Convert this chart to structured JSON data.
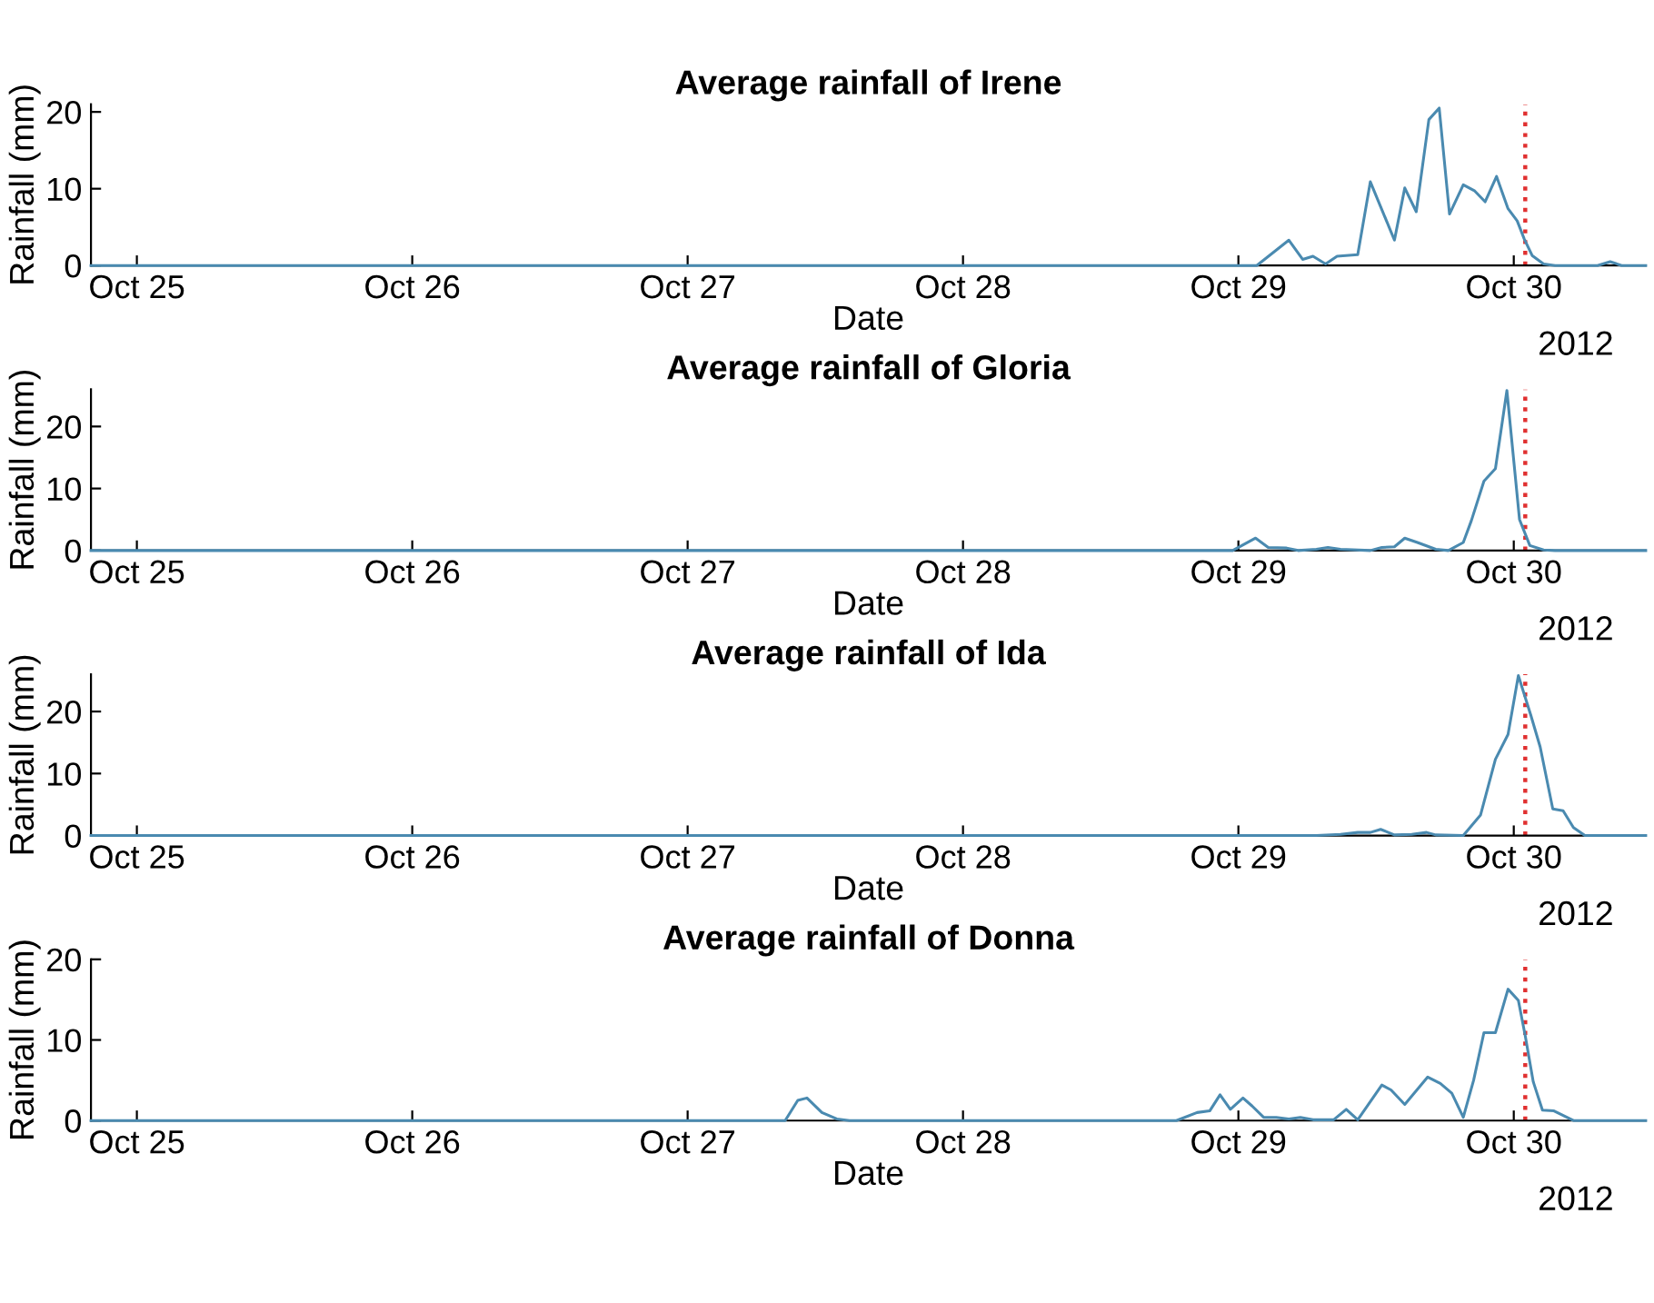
{
  "chart_data": [
    {
      "type": "line",
      "title": "Average rainfall of Irene",
      "xlabel": "Date",
      "ylabel": "Rainfall (mm)",
      "annotations": [
        "2012"
      ],
      "x": [
        "2012-10-24T20:00",
        "2012-10-29T01:36",
        "2012-10-29T04:24",
        "2012-10-29T05:36",
        "2012-10-29T06:30",
        "2012-10-29T07:36",
        "2012-10-29T08:36",
        "2012-10-29T10:24",
        "2012-10-29T11:30",
        "2012-10-29T13:36",
        "2012-10-29T14:30",
        "2012-10-29T15:30",
        "2012-10-29T16:36",
        "2012-10-29T17:30",
        "2012-10-29T18:24",
        "2012-10-29T19:36",
        "2012-10-29T20:36",
        "2012-10-29T21:30",
        "2012-10-29T22:30",
        "2012-10-29T23:30",
        "2012-10-30T00:18",
        "2012-10-30T00:54",
        "2012-10-30T01:36",
        "2012-10-30T02:36",
        "2012-10-30T03:36",
        "2012-10-30T07:18",
        "2012-10-30T08:24",
        "2012-10-30T09:24",
        "2012-10-30T11:30"
      ],
      "series": [
        {
          "color": "#4a8ab0",
          "values": [
            0,
            0,
            3.3,
            0.8,
            1.2,
            0.2,
            1.2,
            1.4,
            10.9,
            3.3,
            10.1,
            7.0,
            19.0,
            20.5,
            6.7,
            10.5,
            9.7,
            8.3,
            11.6,
            7.4,
            5.8,
            3.5,
            1.3,
            0.2,
            0,
            0,
            0.5,
            0,
            0
          ]
        }
      ],
      "xlim": [
        "2012-10-24T20:00",
        "2012-10-30T11:30"
      ],
      "ylim": [
        0,
        21
      ],
      "xticks": [
        {
          "value": "2012-10-25",
          "label": "Oct 25"
        },
        {
          "value": "2012-10-26",
          "label": "Oct 26"
        },
        {
          "value": "2012-10-27",
          "label": "Oct 27"
        },
        {
          "value": "2012-10-28",
          "label": "Oct 28"
        },
        {
          "value": "2012-10-29",
          "label": "Oct 29"
        },
        {
          "value": "2012-10-30",
          "label": "Oct 30"
        }
      ],
      "yticks": [
        0,
        10,
        20
      ],
      "ref_lines": [
        {
          "axis": "x",
          "value": "2012-10-30T01:00",
          "label": null,
          "color": "#e03030",
          "line_style": "dotted"
        }
      ]
    },
    {
      "type": "line",
      "title": "Average rainfall of Gloria",
      "xlabel": "Date",
      "ylabel": "Rainfall (mm)",
      "annotations": [
        "2012"
      ],
      "x": [
        "2012-10-24T20:00",
        "2012-10-28T23:30",
        "2012-10-29T01:30",
        "2012-10-29T02:36",
        "2012-10-29T04:12",
        "2012-10-29T05:12",
        "2012-10-29T06:48",
        "2012-10-29T07:48",
        "2012-10-29T08:54",
        "2012-10-29T11:30",
        "2012-10-29T12:30",
        "2012-10-29T13:36",
        "2012-10-29T14:30",
        "2012-10-29T15:36",
        "2012-10-29T17:12",
        "2012-10-29T18:18",
        "2012-10-29T19:36",
        "2012-10-29T20:18",
        "2012-10-29T21:24",
        "2012-10-29T22:24",
        "2012-10-29T23:24",
        "2012-10-30T00:30",
        "2012-10-30T01:24",
        "2012-10-30T02:36",
        "2012-10-30T03:36",
        "2012-10-30T11:30"
      ],
      "series": [
        {
          "color": "#4a8ab0",
          "values": [
            0,
            0,
            2.0,
            0.5,
            0.4,
            0,
            0.2,
            0.5,
            0.2,
            0,
            0.5,
            0.6,
            2.0,
            1.3,
            0.2,
            0,
            1.3,
            4.8,
            11.2,
            13.2,
            25.8,
            5.0,
            0.8,
            0.1,
            0,
            0
          ]
        }
      ],
      "xlim": [
        "2012-10-24T20:00",
        "2012-10-30T11:30"
      ],
      "ylim": [
        0,
        26
      ],
      "xticks": [
        {
          "value": "2012-10-25",
          "label": "Oct 25"
        },
        {
          "value": "2012-10-26",
          "label": "Oct 26"
        },
        {
          "value": "2012-10-27",
          "label": "Oct 27"
        },
        {
          "value": "2012-10-28",
          "label": "Oct 28"
        },
        {
          "value": "2012-10-29",
          "label": "Oct 29"
        },
        {
          "value": "2012-10-30",
          "label": "Oct 30"
        }
      ],
      "yticks": [
        0,
        10,
        20
      ],
      "ref_lines": [
        {
          "axis": "x",
          "value": "2012-10-30T01:00",
          "label": null,
          "color": "#e03030",
          "line_style": "dotted"
        }
      ]
    },
    {
      "type": "line",
      "title": "Average rainfall of Ida",
      "xlabel": "Date",
      "ylabel": "Rainfall (mm)",
      "annotations": [
        "2012"
      ],
      "x": [
        "2012-10-24T20:00",
        "2012-10-29T06:48",
        "2012-10-29T08:54",
        "2012-10-29T10:24",
        "2012-10-29T11:30",
        "2012-10-29T12:24",
        "2012-10-29T13:36",
        "2012-10-29T15:06",
        "2012-10-29T16:24",
        "2012-10-29T17:12",
        "2012-10-29T19:36",
        "2012-10-29T21:06",
        "2012-10-29T22:24",
        "2012-10-29T23:30",
        "2012-10-30T00:24",
        "2012-10-30T01:30",
        "2012-10-30T02:18",
        "2012-10-30T03:24",
        "2012-10-30T04:18",
        "2012-10-30T05:12",
        "2012-10-30T06:12",
        "2012-10-30T11:30"
      ],
      "series": [
        {
          "color": "#4a8ab0",
          "values": [
            0,
            0,
            0.2,
            0.5,
            0.5,
            1.0,
            0.1,
            0.2,
            0.5,
            0.1,
            0,
            3.3,
            12.3,
            16.3,
            25.8,
            19.3,
            14.3,
            4.3,
            4.0,
            1.3,
            0,
            0
          ]
        }
      ],
      "xlim": [
        "2012-10-24T20:00",
        "2012-10-30T11:30"
      ],
      "ylim": [
        0,
        26
      ],
      "xticks": [
        {
          "value": "2012-10-25",
          "label": "Oct 25"
        },
        {
          "value": "2012-10-26",
          "label": "Oct 26"
        },
        {
          "value": "2012-10-27",
          "label": "Oct 27"
        },
        {
          "value": "2012-10-28",
          "label": "Oct 28"
        },
        {
          "value": "2012-10-29",
          "label": "Oct 29"
        },
        {
          "value": "2012-10-30",
          "label": "Oct 30"
        }
      ],
      "yticks": [
        0,
        10,
        20
      ],
      "ref_lines": [
        {
          "axis": "x",
          "value": "2012-10-30T01:00",
          "label": null,
          "color": "#e03030",
          "line_style": "dotted"
        }
      ]
    },
    {
      "type": "line",
      "title": "Average rainfall of Donna",
      "xlabel": "Date",
      "ylabel": "Rainfall (mm)",
      "annotations": [
        "2012"
      ],
      "x": [
        "2012-10-24T20:00",
        "2012-10-27T08:30",
        "2012-10-27T09:36",
        "2012-10-27T10:24",
        "2012-10-27T11:42",
        "2012-10-27T13:00",
        "2012-10-27T14:06",
        "2012-10-28T18:36",
        "2012-10-28T20:24",
        "2012-10-28T21:30",
        "2012-10-28T22:24",
        "2012-10-28T23:18",
        "2012-10-29T00:24",
        "2012-10-29T01:12",
        "2012-10-29T02:12",
        "2012-10-29T03:18",
        "2012-10-29T04:24",
        "2012-10-29T05:24",
        "2012-10-29T06:30",
        "2012-10-29T08:18",
        "2012-10-29T09:24",
        "2012-10-29T10:24",
        "2012-10-29T12:30",
        "2012-10-29T13:18",
        "2012-10-29T14:30",
        "2012-10-29T16:30",
        "2012-10-29T17:36",
        "2012-10-29T18:36",
        "2012-10-29T19:36",
        "2012-10-29T20:30",
        "2012-10-29T21:24",
        "2012-10-29T22:24",
        "2012-10-29T23:30",
        "2012-10-30T00:24",
        "2012-10-30T01:00",
        "2012-10-30T01:42",
        "2012-10-30T02:30",
        "2012-10-30T03:30",
        "2012-10-30T05:12",
        "2012-10-30T11:30"
      ],
      "series": [
        {
          "color": "#4a8ab0",
          "values": [
            0,
            0,
            2.5,
            2.8,
            1.0,
            0.2,
            0,
            0,
            1.0,
            1.2,
            3.2,
            1.4,
            2.8,
            1.8,
            0.4,
            0.4,
            0.2,
            0.4,
            0.1,
            0.1,
            1.4,
            0.1,
            4.4,
            3.8,
            2.0,
            5.4,
            4.6,
            3.4,
            0.4,
            5.0,
            10.9,
            10.9,
            16.3,
            14.9,
            10.5,
            4.8,
            1.3,
            1.2,
            0,
            0
          ]
        }
      ],
      "xlim": [
        "2012-10-24T20:00",
        "2012-10-30T11:30"
      ],
      "ylim": [
        0,
        20
      ],
      "xticks": [
        {
          "value": "2012-10-25",
          "label": "Oct 25"
        },
        {
          "value": "2012-10-26",
          "label": "Oct 26"
        },
        {
          "value": "2012-10-27",
          "label": "Oct 27"
        },
        {
          "value": "2012-10-28",
          "label": "Oct 28"
        },
        {
          "value": "2012-10-29",
          "label": "Oct 29"
        },
        {
          "value": "2012-10-30",
          "label": "Oct 30"
        }
      ],
      "yticks": [
        0,
        10,
        20
      ],
      "ref_lines": [
        {
          "axis": "x",
          "value": "2012-10-30T01:00",
          "label": null,
          "color": "#e03030",
          "line_style": "dotted"
        }
      ]
    }
  ]
}
